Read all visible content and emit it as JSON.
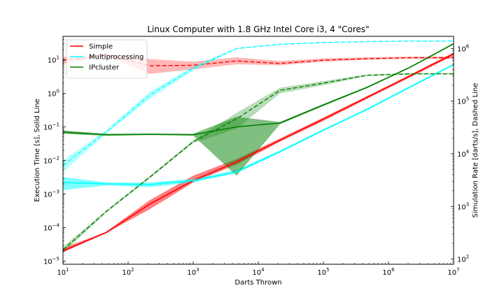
{
  "chart_data": {
    "type": "line",
    "title": "Linux Computer with 1.8 GHz Intel Core i3, 4 \"Cores\"",
    "xlabel": "Darts Thrown",
    "ylabel_left": "Execution Time [s], Solid Line",
    "ylabel_right": "Simulation Rate [darts/s], Dashed Line",
    "xscale": "log",
    "yscale_left": "log",
    "yscale_right": "log",
    "xlim": [
      10,
      10000000
    ],
    "ylim_left": [
      8e-06,
      50
    ],
    "ylim_right": [
      80,
      1700000
    ],
    "x_ticks": [
      {
        "value": 10,
        "base": "10",
        "exp": "1"
      },
      {
        "value": 100,
        "base": "10",
        "exp": "2"
      },
      {
        "value": 1000,
        "base": "10",
        "exp": "3"
      },
      {
        "value": 10000,
        "base": "10",
        "exp": "4"
      },
      {
        "value": 100000,
        "base": "10",
        "exp": "5"
      },
      {
        "value": 1000000,
        "base": "10",
        "exp": "6"
      },
      {
        "value": 10000000,
        "base": "10",
        "exp": "7"
      }
    ],
    "y_left_ticks": [
      {
        "value": 1e-05,
        "base": "10",
        "exp": "−5"
      },
      {
        "value": 0.0001,
        "base": "10",
        "exp": "−4"
      },
      {
        "value": 0.001,
        "base": "10",
        "exp": "−3"
      },
      {
        "value": 0.01,
        "base": "10",
        "exp": "−2"
      },
      {
        "value": 0.1,
        "base": "10",
        "exp": "−1"
      },
      {
        "value": 1,
        "base": "10",
        "exp": "0"
      },
      {
        "value": 10,
        "base": "10",
        "exp": "1"
      }
    ],
    "y_right_ticks": [
      {
        "value": 100,
        "base": "10",
        "exp": "2"
      },
      {
        "value": 1000,
        "base": "10",
        "exp": "3"
      },
      {
        "value": 10000,
        "base": "10",
        "exp": "4"
      },
      {
        "value": 100000,
        "base": "10",
        "exp": "5"
      },
      {
        "value": 1000000,
        "base": "10",
        "exp": "6"
      }
    ],
    "legend_position": "top-left",
    "grid": false,
    "x": [
      10,
      46,
      215,
      1000,
      4640,
      21500,
      100000,
      464000,
      2150000,
      10000000
    ],
    "series": [
      {
        "name": "Simple",
        "color": "#ff0000",
        "time": [
          2e-05,
          7e-05,
          0.0005,
          0.0025,
          0.009,
          0.04,
          0.17,
          0.75,
          3.3,
          15
        ],
        "time_lower": [
          1.8e-05,
          6.8e-05,
          0.00035,
          0.0022,
          0.0075,
          0.036,
          0.15,
          0.68,
          3.0,
          13.5
        ],
        "time_upper": [
          2.4e-05,
          7.5e-05,
          0.00065,
          0.0035,
          0.011,
          0.045,
          0.19,
          0.82,
          3.6,
          16.5
        ],
        "rate": [
          600000,
          750000,
          470000,
          480000,
          580000,
          520000,
          600000,
          640000,
          670000,
          670000
        ],
        "rate_lower": [
          510000,
          720000,
          330000,
          400000,
          500000,
          480000,
          560000,
          610000,
          640000,
          640000
        ],
        "rate_upper": [
          690000,
          780000,
          630000,
          560000,
          680000,
          580000,
          650000,
          680000,
          700000,
          700000
        ]
      },
      {
        "name": "Multiprocessing",
        "color": "#00ffff",
        "time": [
          0.0022,
          0.002,
          0.0019,
          0.0025,
          0.0045,
          0.018,
          0.08,
          0.33,
          1.55,
          7.2
        ],
        "time_lower": [
          0.0013,
          0.0018,
          0.0016,
          0.0022,
          0.0042,
          0.017,
          0.075,
          0.31,
          1.45,
          6.8
        ],
        "time_upper": [
          0.0032,
          0.0022,
          0.0022,
          0.0028,
          0.0052,
          0.02,
          0.085,
          0.35,
          1.65,
          7.6
        ],
        "rate": [
          6000,
          26000,
          130000,
          420000,
          1000000,
          1200000,
          1300000,
          1350000,
          1380000,
          1380000
        ],
        "rate_lower": [
          4500,
          24000,
          110000,
          380000,
          980000,
          1180000,
          1280000,
          1330000,
          1360000,
          1360000
        ],
        "rate_upper": [
          7500,
          28000,
          150000,
          460000,
          1030000,
          1230000,
          1320000,
          1370000,
          1400000,
          1400000
        ]
      },
      {
        "name": "IPcluster",
        "color": "#008000",
        "time": [
          0.07,
          0.058,
          0.06,
          0.058,
          0.1,
          0.13,
          0.45,
          1.5,
          6.0,
          30
        ],
        "time_lower": [
          0.062,
          0.054,
          0.057,
          0.055,
          0.0035,
          0.12,
          0.42,
          1.42,
          5.7,
          28.5
        ],
        "time_upper": [
          0.078,
          0.062,
          0.063,
          0.062,
          0.2,
          0.14,
          0.48,
          1.58,
          6.3,
          31.5
        ],
        "rate": [
          150,
          800,
          3600,
          17000,
          46000,
          160000,
          220000,
          310000,
          330000,
          330000
        ],
        "rate_lower": [
          130,
          760,
          3400,
          16000,
          30000,
          140000,
          200000,
          300000,
          320000,
          320000
        ],
        "rate_upper": [
          170,
          840,
          3800,
          18000,
          60000,
          180000,
          240000,
          320000,
          340000,
          340000
        ]
      }
    ]
  }
}
